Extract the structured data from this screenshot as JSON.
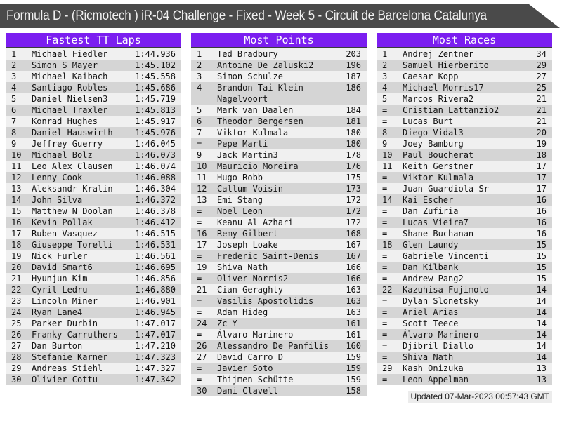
{
  "page": {
    "title": "Formula D - (Ricmotech ) iR-04 Challenge - Fixed - Week 5 - Circuit de Barcelona Catalunya",
    "updated": "Updated 07-Mar-2023 00:57:43 GMT",
    "colors": {
      "accent_purple": "#7b1ef0",
      "titlebar_gray": "#4a4a4a",
      "row_light": "#f0f0f0",
      "row_dark": "#d5d5d5"
    }
  },
  "tables": [
    {
      "id": "fastest-tt-laps",
      "title": "Fastest TT Laps",
      "rows": [
        {
          "rank": "1",
          "name": "Michael Fiedler",
          "value": "1:44.936"
        },
        {
          "rank": "2",
          "name": "Simon S Mayer",
          "value": "1:45.102"
        },
        {
          "rank": "3",
          "name": "Michael Kaibach",
          "value": "1:45.558"
        },
        {
          "rank": "4",
          "name": "Santiago Robles",
          "value": "1:45.686"
        },
        {
          "rank": "5",
          "name": "Daniel Nielsen3",
          "value": "1:45.719"
        },
        {
          "rank": "6",
          "name": "Michael Traxler",
          "value": "1:45.813"
        },
        {
          "rank": "7",
          "name": "Konrad Hughes",
          "value": "1:45.917"
        },
        {
          "rank": "8",
          "name": "Daniel Hauswirth",
          "value": "1:45.976"
        },
        {
          "rank": "9",
          "name": "Jeffrey Guerry",
          "value": "1:46.045"
        },
        {
          "rank": "10",
          "name": "Michael Bolz",
          "value": "1:46.073"
        },
        {
          "rank": "11",
          "name": "Leo Alex Clausen",
          "value": "1:46.074"
        },
        {
          "rank": "12",
          "name": "Lenny Cook",
          "value": "1:46.088"
        },
        {
          "rank": "13",
          "name": "Aleksandr Kralin",
          "value": "1:46.304"
        },
        {
          "rank": "14",
          "name": "John Silva",
          "value": "1:46.372"
        },
        {
          "rank": "15",
          "name": "Matthew N Doolan",
          "value": "1:46.378"
        },
        {
          "rank": "16",
          "name": "Kevin Pollak",
          "value": "1:46.412"
        },
        {
          "rank": "17",
          "name": "Ruben Vasquez",
          "value": "1:46.515"
        },
        {
          "rank": "18",
          "name": "Giuseppe Torelli",
          "value": "1:46.531"
        },
        {
          "rank": "19",
          "name": "Nick Furler",
          "value": "1:46.561"
        },
        {
          "rank": "20",
          "name": "David Smart6",
          "value": "1:46.695"
        },
        {
          "rank": "21",
          "name": "Hyunjun Kim",
          "value": "1:46.856"
        },
        {
          "rank": "22",
          "name": "Cyril Ledru",
          "value": "1:46.880"
        },
        {
          "rank": "23",
          "name": "Lincoln Miner",
          "value": "1:46.901"
        },
        {
          "rank": "24",
          "name": "Ryan Lane4",
          "value": "1:46.945"
        },
        {
          "rank": "25",
          "name": "Parker Durbin",
          "value": "1:47.017"
        },
        {
          "rank": "26",
          "name": "Franky Carruthers",
          "value": "1:47.017"
        },
        {
          "rank": "27",
          "name": "Dan Burton",
          "value": "1:47.210"
        },
        {
          "rank": "28",
          "name": "Stefanie Karner",
          "value": "1:47.323"
        },
        {
          "rank": "29",
          "name": "Andreas Stiehl",
          "value": "1:47.327"
        },
        {
          "rank": "30",
          "name": "Olivier Cottu",
          "value": "1:47.342"
        }
      ]
    },
    {
      "id": "most-points",
      "title": "Most Points",
      "rows": [
        {
          "rank": "1",
          "name": "Ted Bradbury",
          "value": "203"
        },
        {
          "rank": "2",
          "name": "Antoine De Zaluski2",
          "value": "196"
        },
        {
          "rank": "3",
          "name": "Simon Schulze",
          "value": "187"
        },
        {
          "rank": "4",
          "name": "Brandon Tai Klein Nagelvoort",
          "value": "186"
        },
        {
          "rank": "5",
          "name": "Mark van Daalen",
          "value": "184"
        },
        {
          "rank": "6",
          "name": "Theodor Bergersen",
          "value": "181"
        },
        {
          "rank": "7",
          "name": "Viktor Kulmala",
          "value": "180"
        },
        {
          "rank": "=",
          "name": "Pepe Marti",
          "value": "180"
        },
        {
          "rank": "9",
          "name": "Jack Martin3",
          "value": "178"
        },
        {
          "rank": "10",
          "name": "Mauricio Moreira",
          "value": "176"
        },
        {
          "rank": "11",
          "name": "Hugo Robb",
          "value": "175"
        },
        {
          "rank": "12",
          "name": "Callum Voisin",
          "value": "173"
        },
        {
          "rank": "13",
          "name": "Emi Stang",
          "value": "172"
        },
        {
          "rank": "=",
          "name": "Noel Leon",
          "value": "172"
        },
        {
          "rank": "=",
          "name": "Keanu Al Azhari",
          "value": "172"
        },
        {
          "rank": "16",
          "name": "Remy Gilbert",
          "value": "168"
        },
        {
          "rank": "17",
          "name": "Joseph Loake",
          "value": "167"
        },
        {
          "rank": "=",
          "name": "Frederic Saint-Denis",
          "value": "167"
        },
        {
          "rank": "19",
          "name": "Shiva Nath",
          "value": "166"
        },
        {
          "rank": "=",
          "name": "Oliver Norris2",
          "value": "166"
        },
        {
          "rank": "21",
          "name": "Cian Geraghty",
          "value": "163"
        },
        {
          "rank": "=",
          "name": "Vasilis Apostolidis",
          "value": "163"
        },
        {
          "rank": "=",
          "name": "Adam Hideg",
          "value": "163"
        },
        {
          "rank": "24",
          "name": "Zc Y",
          "value": "161"
        },
        {
          "rank": "=",
          "name": "Álvaro Marinero",
          "value": "161"
        },
        {
          "rank": "26",
          "name": "Alessandro De Panfilis",
          "value": "160"
        },
        {
          "rank": "27",
          "name": "David Carro D",
          "value": "159"
        },
        {
          "rank": "=",
          "name": "Javier Soto",
          "value": "159"
        },
        {
          "rank": "=",
          "name": "Thijmen Schütte",
          "value": "159"
        },
        {
          "rank": "30",
          "name": "Dani Clavell",
          "value": "158"
        }
      ]
    },
    {
      "id": "most-races",
      "title": "Most Races",
      "rows": [
        {
          "rank": "1",
          "name": "Andrej Zentner",
          "value": "34"
        },
        {
          "rank": "2",
          "name": "Samuel Hierberito",
          "value": "29"
        },
        {
          "rank": "3",
          "name": "Caesar Kopp",
          "value": "27"
        },
        {
          "rank": "4",
          "name": "Michael Morris17",
          "value": "25"
        },
        {
          "rank": "5",
          "name": "Marcos Rivera2",
          "value": "21"
        },
        {
          "rank": "=",
          "name": "Cristian Lattanzio2",
          "value": "21"
        },
        {
          "rank": "=",
          "name": "Lucas Burt",
          "value": "21"
        },
        {
          "rank": "8",
          "name": "Diego Vidal3",
          "value": "20"
        },
        {
          "rank": "9",
          "name": "Joey Bamburg",
          "value": "19"
        },
        {
          "rank": "10",
          "name": "Paul Boucherat",
          "value": "18"
        },
        {
          "rank": "11",
          "name": "Keith Gerstner",
          "value": "17"
        },
        {
          "rank": "=",
          "name": "Viktor Kulmala",
          "value": "17"
        },
        {
          "rank": "=",
          "name": "Juan Guardiola Sr",
          "value": "17"
        },
        {
          "rank": "14",
          "name": "Kai Escher",
          "value": "16"
        },
        {
          "rank": "=",
          "name": "Dan Zufiria",
          "value": "16"
        },
        {
          "rank": "=",
          "name": "Lucas Vieira7",
          "value": "16"
        },
        {
          "rank": "=",
          "name": "Shane Buchanan",
          "value": "16"
        },
        {
          "rank": "18",
          "name": "Glen Laundy",
          "value": "15"
        },
        {
          "rank": "=",
          "name": "Gabriele Vincenti",
          "value": "15"
        },
        {
          "rank": "=",
          "name": "Dan Kilbank",
          "value": "15"
        },
        {
          "rank": "=",
          "name": "Andrew Pang2",
          "value": "15"
        },
        {
          "rank": "22",
          "name": "Kazuhisa Fujimoto",
          "value": "14"
        },
        {
          "rank": "=",
          "name": "Dylan Slonetsky",
          "value": "14"
        },
        {
          "rank": "=",
          "name": "Ariel Arias",
          "value": "14"
        },
        {
          "rank": "=",
          "name": "Scott Teece",
          "value": "14"
        },
        {
          "rank": "=",
          "name": "Álvaro Marinero",
          "value": "14"
        },
        {
          "rank": "=",
          "name": "Djibril Diallo",
          "value": "14"
        },
        {
          "rank": "=",
          "name": "Shiva Nath",
          "value": "14"
        },
        {
          "rank": "29",
          "name": "Kash Onizuka",
          "value": "13"
        },
        {
          "rank": "=",
          "name": "Leon Appelman",
          "value": "13"
        }
      ]
    }
  ]
}
